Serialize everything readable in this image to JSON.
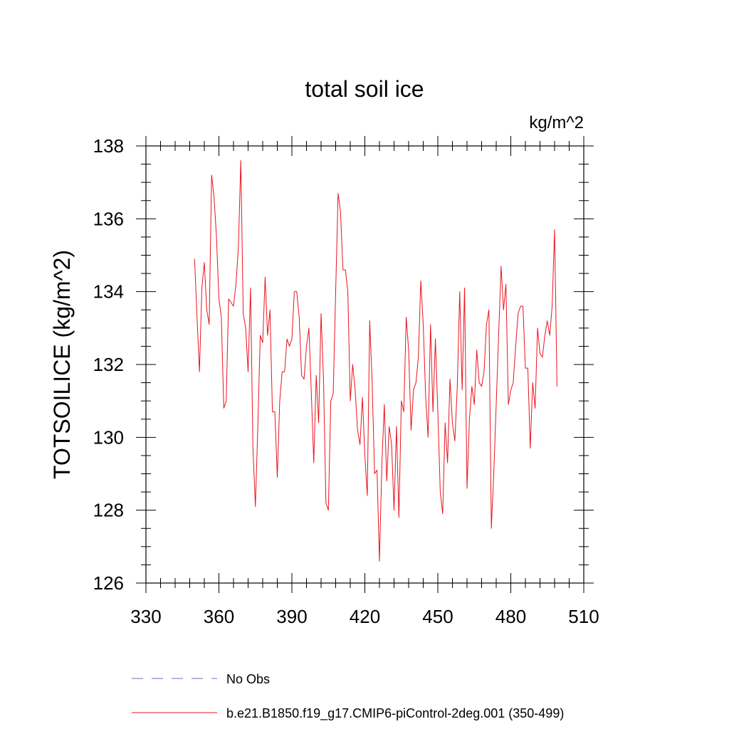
{
  "chart_data": {
    "type": "line",
    "title": "total soil ice",
    "units_label": "kg/m^2",
    "ylabel": "TOTSOILICE  (kg/m^2)",
    "xlabel": "",
    "xlim": [
      330,
      510
    ],
    "ylim": [
      126,
      138
    ],
    "x_ticks": [
      330,
      360,
      390,
      420,
      450,
      480,
      510
    ],
    "y_ticks": [
      126,
      128,
      130,
      132,
      134,
      136,
      138
    ],
    "grid": false,
    "legend_position": "bottom",
    "legend": [
      {
        "label": "No Obs",
        "color": "#7b68c8",
        "style": "dashed"
      },
      {
        "label": "b.e21.B1850.f19_g17.CMIP6-piControl-2deg.001 (350-499)",
        "color": "#e8141e",
        "style": "solid"
      }
    ],
    "series": [
      {
        "name": "b.e21.B1850.f19_g17.CMIP6-piControl-2deg.001 (350-499)",
        "color": "#e8141e",
        "x": [
          350,
          351,
          352,
          353,
          354,
          355,
          356,
          357,
          358,
          359,
          360,
          361,
          362,
          363,
          364,
          365,
          366,
          367,
          368,
          369,
          370,
          371,
          372,
          373,
          374,
          375,
          376,
          377,
          378,
          379,
          380,
          381,
          382,
          383,
          384,
          385,
          386,
          387,
          388,
          389,
          390,
          391,
          392,
          393,
          394,
          395,
          396,
          397,
          398,
          399,
          400,
          401,
          402,
          403,
          404,
          405,
          406,
          407,
          408,
          409,
          410,
          411,
          412,
          413,
          414,
          415,
          416,
          417,
          418,
          419,
          420,
          421,
          422,
          423,
          424,
          425,
          426,
          427,
          428,
          429,
          430,
          431,
          432,
          433,
          434,
          435,
          436,
          437,
          438,
          439,
          440,
          441,
          442,
          443,
          444,
          445,
          446,
          447,
          448,
          449,
          450,
          451,
          452,
          453,
          454,
          455,
          456,
          457,
          458,
          459,
          460,
          461,
          462,
          463,
          464,
          465,
          466,
          467,
          468,
          469,
          470,
          471,
          472,
          473,
          474,
          475,
          476,
          477,
          478,
          479,
          480,
          481,
          482,
          483,
          484,
          485,
          486,
          487,
          488,
          489,
          490,
          491,
          492,
          493,
          494,
          495,
          496,
          497,
          498,
          499
        ],
        "values": [
          134.9,
          133.3,
          131.8,
          134.1,
          134.8,
          133.5,
          133.1,
          137.2,
          136.6,
          135.5,
          133.8,
          133.3,
          130.8,
          131.0,
          133.8,
          133.7,
          133.6,
          134.2,
          135.2,
          137.6,
          133.4,
          133.0,
          131.8,
          134.1,
          129.7,
          128.1,
          130.3,
          132.8,
          132.6,
          134.4,
          132.8,
          133.5,
          130.7,
          130.7,
          128.9,
          131.0,
          131.8,
          131.8,
          132.7,
          132.5,
          132.7,
          134.0,
          134.0,
          133.3,
          131.7,
          131.6,
          132.5,
          133.0,
          131.2,
          129.3,
          131.7,
          130.4,
          133.4,
          131.6,
          128.2,
          128.0,
          131.0,
          131.2,
          134.0,
          136.7,
          136.2,
          134.6,
          134.6,
          134.0,
          131.0,
          132.0,
          131.3,
          130.2,
          129.8,
          131.1,
          129.5,
          128.4,
          133.2,
          131.5,
          129.0,
          129.1,
          126.6,
          129.3,
          130.9,
          128.8,
          130.3,
          129.8,
          128.0,
          130.3,
          127.8,
          131.0,
          130.7,
          133.3,
          132.4,
          130.2,
          131.3,
          131.5,
          132.2,
          134.3,
          133.1,
          131.1,
          130.0,
          133.1,
          130.7,
          132.7,
          130.7,
          128.5,
          127.9,
          130.4,
          129.3,
          131.6,
          130.4,
          129.9,
          131.4,
          134.0,
          131.3,
          134.1,
          128.6,
          130.5,
          131.4,
          130.9,
          132.4,
          131.5,
          131.4,
          131.8,
          133.1,
          133.5,
          127.5,
          129.0,
          130.9,
          132.8,
          134.7,
          133.5,
          134.2,
          130.9,
          131.3,
          131.5,
          132.5,
          133.4,
          133.6,
          133.6,
          131.9,
          131.9,
          129.7,
          131.5,
          130.8,
          133.0,
          132.3,
          132.2,
          132.8,
          133.2,
          132.8,
          133.6,
          135.7,
          131.4
        ]
      }
    ]
  }
}
